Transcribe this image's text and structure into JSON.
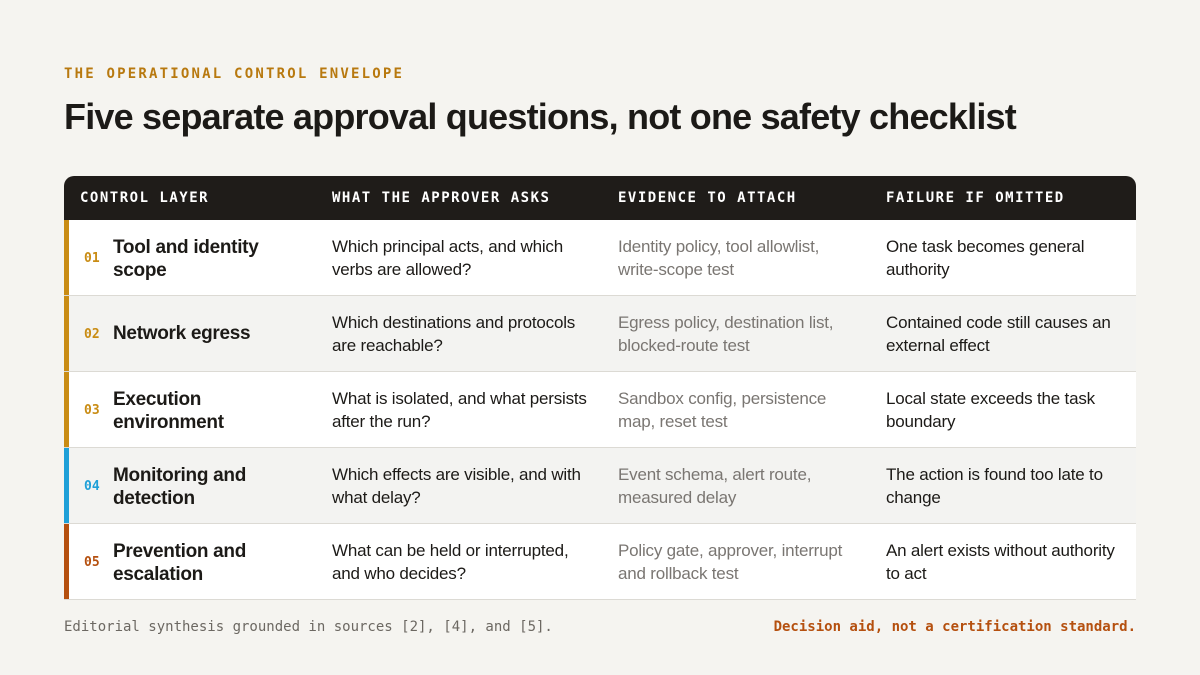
{
  "eyebrow": "THE OPERATIONAL CONTROL ENVELOPE",
  "title": "Five separate approval questions, not one safety checklist",
  "headers": {
    "layer": "CONTROL LAYER",
    "ask": "WHAT THE APPROVER ASKS",
    "evidence": "EVIDENCE TO ATTACH",
    "failure": "FAILURE IF OMITTED"
  },
  "rows": [
    {
      "num": "01",
      "layer": "Tool and identity scope",
      "ask": "Which principal acts, and which verbs are allowed?",
      "evidence": "Identity policy, tool allowlist, write-scope test",
      "failure": "One task becomes general authority",
      "accent": "#c98c14"
    },
    {
      "num": "02",
      "layer": "Network egress",
      "ask": "Which destinations and protocols are reachable?",
      "evidence": "Egress policy, destination list, blocked-route test",
      "failure": "Contained code still causes an external effect",
      "accent": "#c98c14"
    },
    {
      "num": "03",
      "layer": "Execution environment",
      "ask": "What is isolated, and what persists after the run?",
      "evidence": "Sandbox config, persistence map, reset test",
      "failure": "Local state exceeds the task boundary",
      "accent": "#c98c14"
    },
    {
      "num": "04",
      "layer": "Monitoring and detection",
      "ask": "Which effects are visible, and with what delay?",
      "evidence": "Event schema, alert route, measured delay",
      "failure": "The action is found too late to change",
      "accent": "#1fa0d8"
    },
    {
      "num": "05",
      "layer": "Prevention and escalation",
      "ask": "What can be held or interrupted, and who decides?",
      "evidence": "Policy gate, approver, interrupt and rollback test",
      "failure": "An alert exists without authority to act",
      "accent": "#b5500f"
    }
  ],
  "footer": {
    "left": "Editorial synthesis grounded in sources [2], [4], and [5].",
    "right": "Decision aid, not a certification standard."
  }
}
